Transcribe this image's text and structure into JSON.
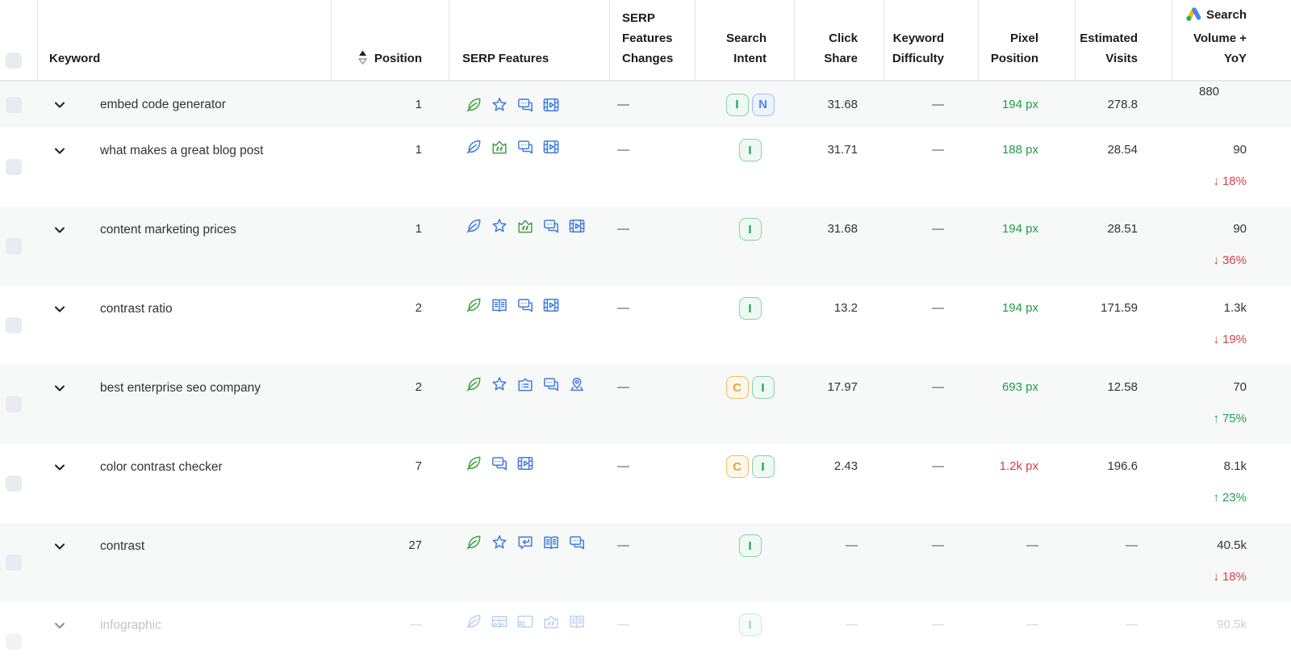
{
  "table": {
    "columns": [
      {
        "id": "select",
        "label": ""
      },
      {
        "id": "keyword",
        "label": "Keyword"
      },
      {
        "id": "position",
        "label": "Position",
        "sortable": true,
        "sort_icon": "sort-asc-desc-icon"
      },
      {
        "id": "serp_features",
        "label": "SERP Features"
      },
      {
        "id": "serp_features_changes",
        "label": "SERP Features Changes"
      },
      {
        "id": "search_intent",
        "label": "Search Intent"
      },
      {
        "id": "click_share",
        "label": "Click Share"
      },
      {
        "id": "keyword_difficulty",
        "label": "Keyword Difficulty"
      },
      {
        "id": "pixel_position",
        "label": "Pixel Position"
      },
      {
        "id": "estimated_visits",
        "label": "Estimated Visits"
      },
      {
        "id": "search_volume_yoy",
        "label": "Search Volume + YoY",
        "icon": "google-ads-icon"
      }
    ],
    "rows": [
      {
        "keyword": "embed code generator",
        "position": "1",
        "serp_features": [
          {
            "icon": "ai-overview-leaf",
            "color": "green"
          },
          {
            "icon": "reviews-star",
            "color": "blue"
          },
          {
            "icon": "discussions-forums",
            "color": "blue"
          },
          {
            "icon": "video-carousel",
            "color": "blue"
          }
        ],
        "serp_features_changes": "—",
        "search_intent": [
          {
            "label": "I",
            "type": "informational"
          },
          {
            "label": "N",
            "type": "navigational"
          }
        ],
        "click_share": "31.68",
        "keyword_difficulty": "—",
        "pixel_position": {
          "value": "194 px",
          "color": "green"
        },
        "estimated_visits": "278.8",
        "search_volume": "880",
        "yoy": null,
        "muted": false
      },
      {
        "keyword": "what makes a great blog post",
        "position": "1",
        "serp_features": [
          {
            "icon": "ai-overview-leaf",
            "color": "blue"
          },
          {
            "icon": "featured-snippet",
            "color": "green"
          },
          {
            "icon": "discussions-forums",
            "color": "blue"
          },
          {
            "icon": "video-carousel",
            "color": "blue"
          }
        ],
        "serp_features_changes": "—",
        "search_intent": [
          {
            "label": "I",
            "type": "informational"
          }
        ],
        "click_share": "31.71",
        "keyword_difficulty": "—",
        "pixel_position": {
          "value": "188 px",
          "color": "green"
        },
        "estimated_visits": "28.54",
        "search_volume": "90",
        "yoy": {
          "direction": "down",
          "value": "18%"
        },
        "muted": false
      },
      {
        "keyword": "content marketing prices",
        "position": "1",
        "serp_features": [
          {
            "icon": "ai-overview-leaf",
            "color": "blue"
          },
          {
            "icon": "reviews-star",
            "color": "blue"
          },
          {
            "icon": "featured-snippet",
            "color": "green"
          },
          {
            "icon": "discussions-forums",
            "color": "blue"
          },
          {
            "icon": "video-carousel",
            "color": "blue"
          }
        ],
        "serp_features_changes": "—",
        "search_intent": [
          {
            "label": "I",
            "type": "informational"
          }
        ],
        "click_share": "31.68",
        "keyword_difficulty": "—",
        "pixel_position": {
          "value": "194 px",
          "color": "green"
        },
        "estimated_visits": "28.51",
        "search_volume": "90",
        "yoy": {
          "direction": "down",
          "value": "36%"
        },
        "muted": false
      },
      {
        "keyword": "contrast ratio",
        "position": "2",
        "serp_features": [
          {
            "icon": "ai-overview-leaf",
            "color": "green"
          },
          {
            "icon": "knowledge-panel-book",
            "color": "blue"
          },
          {
            "icon": "discussions-forums",
            "color": "blue"
          },
          {
            "icon": "video-carousel",
            "color": "blue"
          }
        ],
        "serp_features_changes": "—",
        "search_intent": [
          {
            "label": "I",
            "type": "informational"
          }
        ],
        "click_share": "13.2",
        "keyword_difficulty": "—",
        "pixel_position": {
          "value": "194 px",
          "color": "green"
        },
        "estimated_visits": "171.59",
        "search_volume": "1.3k",
        "yoy": {
          "direction": "down",
          "value": "19%"
        },
        "muted": false
      },
      {
        "keyword": "best enterprise seo company",
        "position": "2",
        "serp_features": [
          {
            "icon": "ai-overview-leaf",
            "color": "green"
          },
          {
            "icon": "reviews-star",
            "color": "blue"
          },
          {
            "icon": "instant-answer-list",
            "color": "blue"
          },
          {
            "icon": "discussions-forums",
            "color": "blue"
          },
          {
            "icon": "local-pack-pin",
            "color": "blue"
          }
        ],
        "serp_features_changes": "—",
        "search_intent": [
          {
            "label": "C",
            "type": "commercial"
          },
          {
            "label": "I",
            "type": "informational"
          }
        ],
        "click_share": "17.97",
        "keyword_difficulty": "—",
        "pixel_position": {
          "value": "693 px",
          "color": "green"
        },
        "estimated_visits": "12.58",
        "search_volume": "70",
        "yoy": {
          "direction": "up",
          "value": "75%"
        },
        "muted": false
      },
      {
        "keyword": "color contrast checker",
        "position": "7",
        "serp_features": [
          {
            "icon": "ai-overview-leaf",
            "color": "green"
          },
          {
            "icon": "discussions-forums",
            "color": "blue"
          },
          {
            "icon": "video-carousel",
            "color": "blue"
          }
        ],
        "serp_features_changes": "—",
        "search_intent": [
          {
            "label": "C",
            "type": "commercial"
          },
          {
            "label": "I",
            "type": "informational"
          }
        ],
        "click_share": "2.43",
        "keyword_difficulty": "—",
        "pixel_position": {
          "value": "1.2k px",
          "color": "red"
        },
        "estimated_visits": "196.6",
        "search_volume": "8.1k",
        "yoy": {
          "direction": "up",
          "value": "23%"
        },
        "muted": false
      },
      {
        "keyword": "contrast",
        "position": "27",
        "serp_features": [
          {
            "icon": "ai-overview-leaf",
            "color": "green"
          },
          {
            "icon": "reviews-star",
            "color": "blue"
          },
          {
            "icon": "reply-bubble",
            "color": "blue"
          },
          {
            "icon": "knowledge-panel-book",
            "color": "blue"
          },
          {
            "icon": "discussions-forums",
            "color": "blue"
          }
        ],
        "serp_features_changes": "—",
        "search_intent": [
          {
            "label": "I",
            "type": "informational"
          }
        ],
        "click_share": "—",
        "keyword_difficulty": "—",
        "pixel_position": {
          "value": "—",
          "color": null
        },
        "estimated_visits": "—",
        "search_volume": "40.5k",
        "yoy": {
          "direction": "down",
          "value": "18%"
        },
        "muted": false
      },
      {
        "keyword": "infographic",
        "position": "—",
        "serp_features": [
          {
            "icon": "ai-overview-leaf",
            "color": "blue"
          },
          {
            "icon": "image-pack",
            "color": "blue"
          },
          {
            "icon": "image-thumbnail",
            "color": "blue"
          },
          {
            "icon": "featured-snippet",
            "color": "blue"
          },
          {
            "icon": "knowledge-panel-book",
            "color": "blue"
          }
        ],
        "serp_features_changes": "—",
        "search_intent": [
          {
            "label": "I",
            "type": "informational"
          }
        ],
        "click_share": "—",
        "keyword_difficulty": "—",
        "pixel_position": {
          "value": "—",
          "color": null
        },
        "estimated_visits": "—",
        "search_volume": "90.5k",
        "yoy": null,
        "muted": true
      }
    ]
  },
  "colors": {
    "positive_green": "#1e9e46",
    "negative_red": "#d5414b",
    "icon_green": "#3fa33f",
    "icon_blue": "#3e7ce0",
    "intent_informational": "#18a05c",
    "intent_navigational": "#4a86ee",
    "intent_commercial": "#e9a23b",
    "zebra_row": "#f7f8f8"
  }
}
